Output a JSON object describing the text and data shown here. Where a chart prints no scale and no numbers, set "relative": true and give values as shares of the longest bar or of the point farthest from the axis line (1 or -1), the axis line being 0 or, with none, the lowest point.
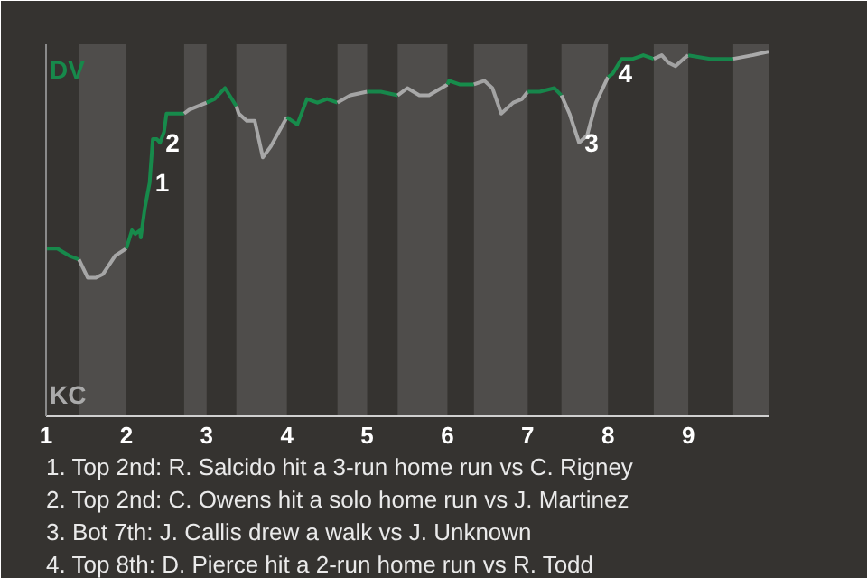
{
  "chart_data": {
    "type": "line",
    "relative": true,
    "xlim": [
      1,
      10
    ],
    "xticks": [
      1,
      2,
      3,
      4,
      5,
      6,
      7,
      8,
      9
    ],
    "series": [
      {
        "color": "#17894b",
        "x": [
          1,
          1.14,
          1.29,
          1.41
        ],
        "values": [
          0.46,
          0.46,
          0.44,
          0.43
        ]
      },
      {
        "color": "#a6a6a6",
        "x": [
          1.41,
          1.52,
          1.62,
          1.71,
          1.86,
          2
        ],
        "values": [
          0.43,
          0.38,
          0.38,
          0.39,
          0.44,
          0.46
        ]
      },
      {
        "color": "#178a4b",
        "x": [
          2,
          2.07,
          2.11,
          2.17,
          2.18,
          2.23,
          2.29,
          2.33,
          2.38,
          2.42,
          2.47,
          2.5,
          2.61,
          2.72
        ],
        "values": [
          0.46,
          0.51,
          0.5,
          0.51,
          0.49,
          0.57,
          0.64,
          0.76,
          0.76,
          0.75,
          0.78,
          0.83,
          0.83,
          0.83
        ]
      },
      {
        "color": "#a5a5a5",
        "x": [
          2.72,
          2.78,
          2.89,
          3
        ],
        "values": [
          0.83,
          0.84,
          0.85,
          0.86
        ]
      },
      {
        "color": "#17884b",
        "x": [
          3,
          3.1,
          3.23,
          3.37
        ],
        "values": [
          0.86,
          0.87,
          0.9,
          0.85
        ]
      },
      {
        "color": "#a7a7a7",
        "x": [
          3.37,
          3.4,
          3.5,
          3.6,
          3.7,
          3.8,
          4
        ],
        "values": [
          0.85,
          0.83,
          0.81,
          0.81,
          0.71,
          0.74,
          0.82
        ]
      },
      {
        "color": "#178b4b",
        "x": [
          4,
          4.13,
          4.25,
          4.38,
          4.5,
          4.63
        ],
        "values": [
          0.82,
          0.8,
          0.87,
          0.86,
          0.87,
          0.86
        ]
      },
      {
        "color": "#a4a4a4",
        "x": [
          4.63,
          4.79,
          5
        ],
        "values": [
          0.86,
          0.88,
          0.89
        ]
      },
      {
        "color": "#17874b",
        "x": [
          5,
          5.17,
          5.38
        ],
        "values": [
          0.89,
          0.89,
          0.88
        ]
      },
      {
        "color": "#a8a8a8",
        "x": [
          5.38,
          5.5,
          5.65,
          5.77,
          6
        ],
        "values": [
          0.88,
          0.9,
          0.88,
          0.88,
          0.91
        ]
      },
      {
        "color": "#178c4b",
        "x": [
          6,
          6.02,
          6.15,
          6.33
        ],
        "values": [
          0.91,
          0.92,
          0.91,
          0.91
        ]
      },
      {
        "color": "#a3a3a3",
        "x": [
          6.33,
          6.46,
          6.56,
          6.67,
          6.82,
          6.93,
          7
        ],
        "values": [
          0.91,
          0.92,
          0.9,
          0.83,
          0.86,
          0.87,
          0.89
        ]
      },
      {
        "color": "#17864b",
        "x": [
          7,
          7.15,
          7.33,
          7.42
        ],
        "values": [
          0.89,
          0.89,
          0.9,
          0.88
        ]
      },
      {
        "color": "#a9a9a9",
        "x": [
          7.42,
          7.52,
          7.64,
          7.74,
          7.85,
          8
        ],
        "values": [
          0.88,
          0.83,
          0.75,
          0.77,
          0.86,
          0.93
        ]
      },
      {
        "color": "#178d4b",
        "x": [
          8,
          8.06,
          8.17,
          8.31,
          8.44,
          8.57
        ],
        "values": [
          0.93,
          0.94,
          0.98,
          0.98,
          0.99,
          0.98
        ]
      },
      {
        "color": "#a2a2a2",
        "x": [
          8.57,
          8.67,
          8.75,
          8.84,
          8.94,
          9
        ],
        "values": [
          0.98,
          0.99,
          0.97,
          0.96,
          0.98,
          0.99
        ]
      },
      {
        "color": "#17854b",
        "x": [
          9,
          9.27,
          9.56
        ],
        "values": [
          0.99,
          0.98,
          0.98
        ]
      },
      {
        "color": "#aaaaaa",
        "x": [
          9.56,
          9.8,
          10
        ],
        "values": [
          0.98,
          0.99,
          1.0
        ]
      }
    ],
    "bands": [
      {
        "axis": "x",
        "from": 1.41,
        "to": 2,
        "color": "#4f4d4b"
      },
      {
        "axis": "x",
        "from": 2.72,
        "to": 3,
        "color": "#4f4d4b"
      },
      {
        "axis": "x",
        "from": 3.37,
        "to": 4,
        "color": "#4f4d4b"
      },
      {
        "axis": "x",
        "from": 4.63,
        "to": 5,
        "color": "#4f4d4b"
      },
      {
        "axis": "x",
        "from": 5.38,
        "to": 6,
        "color": "#4f4d4b"
      },
      {
        "axis": "x",
        "from": 6.33,
        "to": 7,
        "color": "#4f4d4b"
      },
      {
        "axis": "x",
        "from": 7.42,
        "to": 8,
        "color": "#4f4d4b"
      },
      {
        "axis": "x",
        "from": 8.57,
        "to": 9,
        "color": "#4f4d4b"
      },
      {
        "axis": "x",
        "from": 9.56,
        "to": 10,
        "color": "#4f4d4b"
      }
    ],
    "annotations": [
      {
        "text": "1",
        "x": 2.29,
        "y": 0.64
      },
      {
        "text": "2",
        "x": 2.42,
        "y": 0.75
      },
      {
        "text": "3",
        "x": 7.64,
        "y": 0.75
      },
      {
        "text": "4",
        "x": 8.06,
        "y": 0.94
      },
      "DV",
      "KC",
      "1. Top 2nd: R. Salcido hit a 3-run home run vs C. Rigney",
      "2. Top 2nd: C. Owens hit a solo home run vs J. Martinez",
      "3. Bot 7th: J. Callis drew a walk vs J. Unknown",
      "4. Top 8th: D. Pierce hit a 2-run home run vs R. Todd"
    ]
  }
}
